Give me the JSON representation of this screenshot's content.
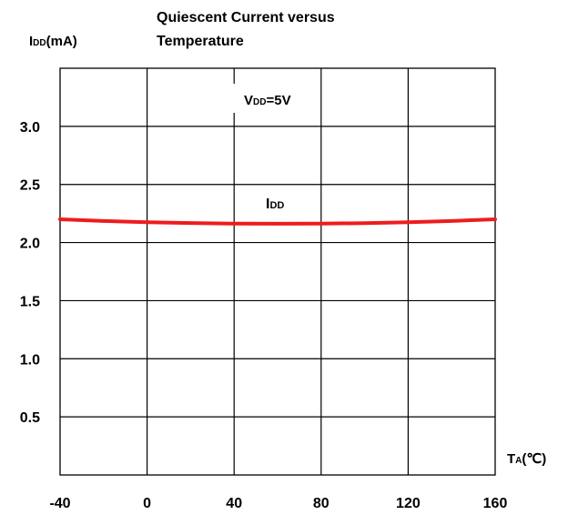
{
  "chart_data": {
    "type": "line",
    "title_lines": [
      "Quiescent Current versus",
      "Temperature"
    ],
    "ylabel": {
      "main": "I",
      "sub": "DD",
      "rest": "(mA)"
    },
    "xlabel": {
      "main": "T",
      "sub": "A",
      "rest": "(℃)"
    },
    "annotation": {
      "main": "V",
      "sub": "DD",
      "rest": "=5V"
    },
    "series_label": {
      "main": "I",
      "sub": "DD"
    },
    "xlim": [
      -40,
      160
    ],
    "ylim": [
      0,
      3.5
    ],
    "x_ticks": [
      "-40",
      "0",
      "40",
      "80",
      "120",
      "160"
    ],
    "y_ticks": [
      "0.5",
      "1.0",
      "1.5",
      "2.0",
      "2.5",
      "3.0"
    ],
    "grid": true,
    "line_color": "#ee1c1c",
    "series": [
      {
        "x": [
          -40,
          -20,
          0,
          20,
          40,
          60,
          80,
          100,
          120,
          140,
          160
        ],
        "y": [
          2.2,
          2.185,
          2.175,
          2.168,
          2.163,
          2.162,
          2.163,
          2.167,
          2.175,
          2.185,
          2.2
        ]
      }
    ]
  }
}
